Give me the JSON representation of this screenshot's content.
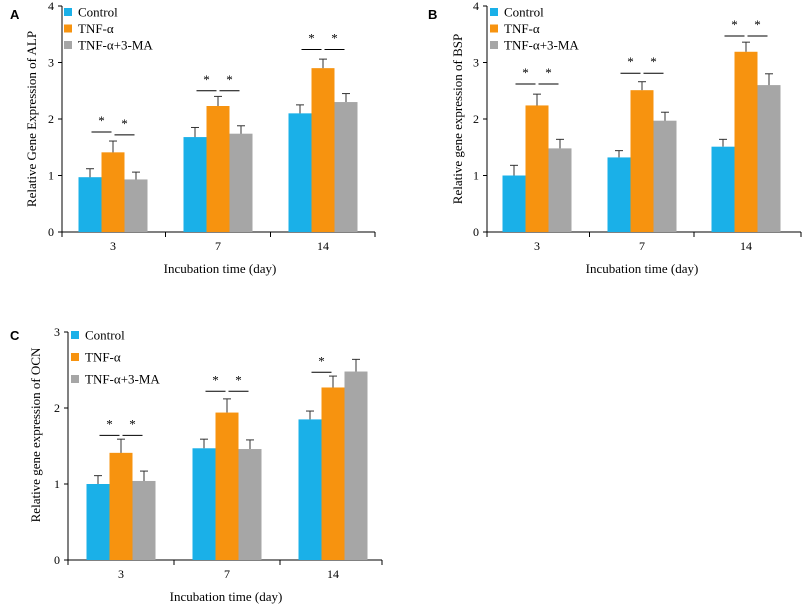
{
  "colors": {
    "control": "#1ab0e8",
    "tnf": "#f7930f",
    "tnf_3ma": "#a6a6a6",
    "axis": "#000000"
  },
  "chart_data": [
    {
      "panel": "A",
      "type": "bar",
      "categories": [
        "3",
        "7",
        "14"
      ],
      "series": [
        {
          "name": "Control",
          "values": [
            0.97,
            1.68,
            2.1
          ],
          "errors": [
            0.15,
            0.17,
            0.15
          ]
        },
        {
          "name": "TNF-α",
          "values": [
            1.41,
            2.23,
            2.9
          ],
          "errors": [
            0.2,
            0.17,
            0.16
          ]
        },
        {
          "name": "TNF-α+3-MA",
          "values": [
            0.93,
            1.74,
            2.3
          ],
          "errors": [
            0.13,
            0.14,
            0.15
          ]
        }
      ],
      "significance": [
        {
          "group": 0,
          "from": 0,
          "to": 1,
          "y": 1.77,
          "label": "*"
        },
        {
          "group": 0,
          "from": 1,
          "to": 2,
          "y": 1.72,
          "label": "*"
        },
        {
          "group": 1,
          "from": 0,
          "to": 1,
          "y": 2.5,
          "label": "*"
        },
        {
          "group": 1,
          "from": 1,
          "to": 2,
          "y": 2.5,
          "label": "*"
        },
        {
          "group": 2,
          "from": 0,
          "to": 1,
          "y": 3.23,
          "label": "*"
        },
        {
          "group": 2,
          "from": 1,
          "to": 2,
          "y": 3.23,
          "label": "*"
        }
      ],
      "title": "",
      "xlabel": "Incubation time (day)",
      "ylabel": "Relative Gene Expression of ALP",
      "ylim": [
        0,
        4
      ],
      "yticks": [
        "0",
        "1",
        "2",
        "3",
        "4"
      ],
      "legend": "top-left",
      "grid": false
    },
    {
      "panel": "B",
      "type": "bar",
      "categories": [
        "3",
        "7",
        "14"
      ],
      "series": [
        {
          "name": "Control",
          "values": [
            1.0,
            1.32,
            1.51
          ],
          "errors": [
            0.18,
            0.12,
            0.13
          ]
        },
        {
          "name": "TNF-α",
          "values": [
            2.24,
            2.51,
            3.19
          ],
          "errors": [
            0.2,
            0.15,
            0.17
          ]
        },
        {
          "name": "TNF-α+3-MA",
          "values": [
            1.48,
            1.97,
            2.6
          ],
          "errors": [
            0.16,
            0.15,
            0.2
          ]
        }
      ],
      "significance": [
        {
          "group": 0,
          "from": 0,
          "to": 1,
          "y": 2.62,
          "label": "*"
        },
        {
          "group": 0,
          "from": 1,
          "to": 2,
          "y": 2.62,
          "label": "*"
        },
        {
          "group": 1,
          "from": 0,
          "to": 1,
          "y": 2.81,
          "label": "*"
        },
        {
          "group": 1,
          "from": 1,
          "to": 2,
          "y": 2.81,
          "label": "*"
        },
        {
          "group": 2,
          "from": 0,
          "to": 1,
          "y": 3.47,
          "label": "*"
        },
        {
          "group": 2,
          "from": 1,
          "to": 2,
          "y": 3.47,
          "label": "*"
        }
      ],
      "title": "",
      "xlabel": "Incubation time (day)",
      "ylabel": "Relative gene expression of BSP",
      "ylim": [
        0,
        4
      ],
      "yticks": [
        "0",
        "1",
        "2",
        "3",
        "4"
      ],
      "legend": "top-left",
      "grid": false
    },
    {
      "panel": "C",
      "type": "bar",
      "categories": [
        "3",
        "7",
        "14"
      ],
      "series": [
        {
          "name": "Control",
          "values": [
            1.0,
            1.47,
            1.85
          ],
          "errors": [
            0.11,
            0.12,
            0.11
          ]
        },
        {
          "name": "TNF-α",
          "values": [
            1.41,
            1.94,
            2.27
          ],
          "errors": [
            0.18,
            0.18,
            0.15
          ]
        },
        {
          "name": "TNF-α+3-MA",
          "values": [
            1.04,
            1.46,
            2.48
          ],
          "errors": [
            0.13,
            0.12,
            0.16
          ]
        }
      ],
      "significance": [
        {
          "group": 0,
          "from": 0,
          "to": 1,
          "y": 1.64,
          "label": "*"
        },
        {
          "group": 0,
          "from": 1,
          "to": 2,
          "y": 1.64,
          "label": "*"
        },
        {
          "group": 1,
          "from": 0,
          "to": 1,
          "y": 2.22,
          "label": "*"
        },
        {
          "group": 1,
          "from": 1,
          "to": 2,
          "y": 2.22,
          "label": "*"
        },
        {
          "group": 2,
          "from": 0,
          "to": 1,
          "y": 2.47,
          "label": "*"
        }
      ],
      "title": "",
      "xlabel": "Incubation time (day)",
      "ylabel": "Relative gene expression of OCN",
      "ylim": [
        0,
        3
      ],
      "yticks": [
        "0",
        "1",
        "2",
        "3"
      ],
      "legend": "top-left",
      "grid": false
    }
  ]
}
